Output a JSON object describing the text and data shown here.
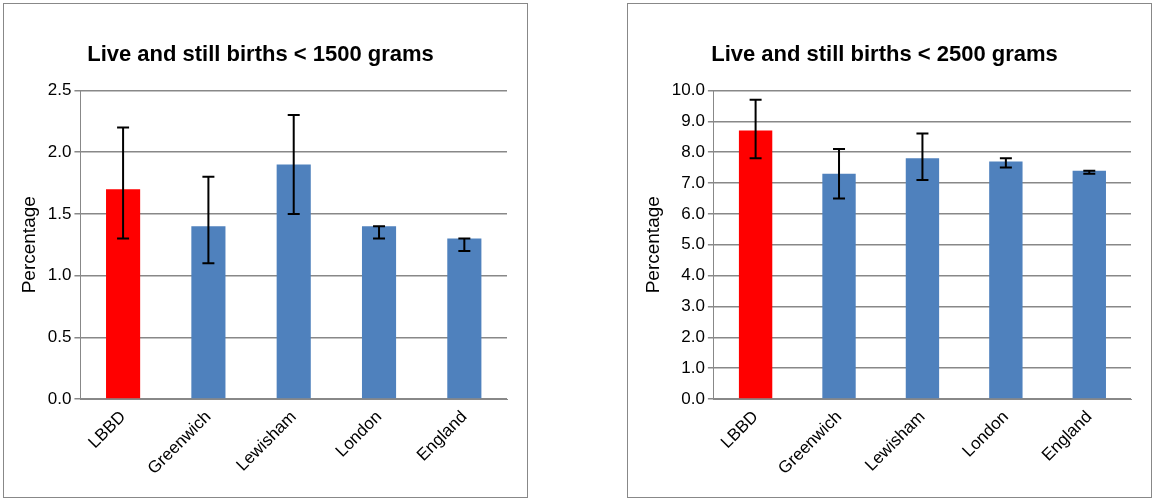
{
  "chart_data": [
    {
      "type": "bar",
      "title": "Live and still births < 1500 grams",
      "ylabel": "Percentage",
      "categories": [
        "LBBD",
        "Greenwich",
        "Lewisham",
        "London",
        "England"
      ],
      "values": [
        1.7,
        1.4,
        1.9,
        1.4,
        1.3
      ],
      "colors": [
        "#ff0000",
        "#4f81bd",
        "#4f81bd",
        "#4f81bd",
        "#4f81bd"
      ],
      "errors": [
        [
          1.3,
          2.2
        ],
        [
          1.1,
          1.8
        ],
        [
          1.5,
          2.3
        ],
        [
          1.3,
          1.4
        ],
        [
          1.2,
          1.3
        ]
      ],
      "ylim": [
        0,
        2.5
      ],
      "yticks": [
        {
          "value": 0,
          "label": "0.0"
        },
        {
          "value": 0.5,
          "label": "0.5"
        },
        {
          "value": 1,
          "label": "1.0"
        },
        {
          "value": 1.5,
          "label": "1.5"
        },
        {
          "value": 2,
          "label": "2.0"
        },
        {
          "value": 2.5,
          "label": "2.5"
        }
      ],
      "grid": "y",
      "legend": false
    },
    {
      "type": "bar",
      "title": "Live and still births < 2500 grams",
      "ylabel": "Percentage",
      "categories": [
        "LBBD",
        "Greenwich",
        "Lewisham",
        "London",
        "England"
      ],
      "values": [
        8.7,
        7.3,
        7.8,
        7.7,
        7.4
      ],
      "colors": [
        "#ff0000",
        "#4f81bd",
        "#4f81bd",
        "#4f81bd",
        "#4f81bd"
      ],
      "errors": [
        [
          7.8,
          9.7
        ],
        [
          6.5,
          8.1
        ],
        [
          7.1,
          8.6
        ],
        [
          7.5,
          7.8
        ],
        [
          7.3,
          7.4
        ]
      ],
      "ylim": [
        0,
        10
      ],
      "yticks": [
        {
          "value": 0,
          "label": "0.0"
        },
        {
          "value": 1,
          "label": "1.0"
        },
        {
          "value": 2,
          "label": "2.0"
        },
        {
          "value": 3,
          "label": "3.0"
        },
        {
          "value": 4,
          "label": "4.0"
        },
        {
          "value": 5,
          "label": "5.0"
        },
        {
          "value": 6,
          "label": "6.0"
        },
        {
          "value": 7,
          "label": "7.0"
        },
        {
          "value": 8,
          "label": "8.0"
        },
        {
          "value": 9,
          "label": "9.0"
        },
        {
          "value": 10,
          "label": "10.0"
        }
      ],
      "grid": "y",
      "legend": false
    }
  ]
}
